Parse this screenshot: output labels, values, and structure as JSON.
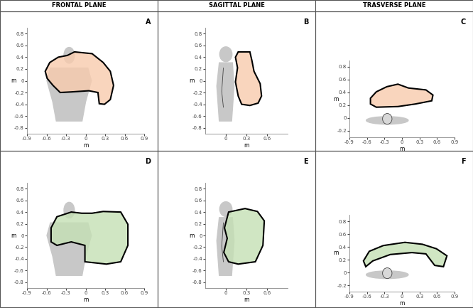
{
  "columns": [
    "FRONTAL PLANE",
    "SAGITTAL PLANE",
    "TRASVERSE PLANE"
  ],
  "chart_data": [
    {
      "type": "polygon",
      "title": "A",
      "xlabel": "m",
      "ylabel": "m",
      "color": "#f8cbad",
      "x": [
        -0.62,
        -0.55,
        -0.42,
        -0.28,
        -0.17,
        0.1,
        0.27,
        0.38,
        0.43,
        0.38,
        0.29,
        0.21,
        0.19,
        0.05,
        -0.22,
        -0.39,
        -0.5,
        -0.59
      ],
      "y": [
        0.16,
        0.31,
        0.4,
        0.43,
        0.49,
        0.46,
        0.31,
        0.16,
        -0.08,
        -0.32,
        -0.4,
        -0.39,
        -0.2,
        -0.17,
        -0.19,
        -0.2,
        -0.08,
        0.04
      ],
      "xlim": [
        -0.9,
        0.9
      ],
      "ylim": [
        -0.9,
        0.9
      ],
      "xticks": [
        -0.9,
        -0.6,
        -0.3,
        0,
        0.3,
        0.6,
        0.9
      ],
      "yticks": [
        -0.8,
        -0.6,
        -0.4,
        -0.2,
        0,
        0.2,
        0.4,
        0.6,
        0.8
      ]
    },
    {
      "type": "polygon",
      "title": "B",
      "xlabel": "m",
      "ylabel": "m",
      "color": "#f8cbad",
      "x": [
        0.18,
        0.35,
        0.38,
        0.41,
        0.5,
        0.52,
        0.47,
        0.35,
        0.23,
        0.18,
        0.14,
        0.17,
        0.14
      ],
      "y": [
        0.49,
        0.49,
        0.34,
        0.16,
        -0.05,
        -0.26,
        -0.38,
        -0.42,
        -0.4,
        -0.26,
        -0.02,
        0.22,
        0.4
      ],
      "xlim": [
        -0.3,
        0.9
      ],
      "ylim": [
        -0.9,
        0.9
      ],
      "xticks": [
        0,
        0.3,
        0.6
      ],
      "yticks": [
        -0.8,
        -0.6,
        -0.4,
        -0.2,
        0,
        0.2,
        0.4,
        0.6,
        0.8
      ]
    },
    {
      "type": "polygon",
      "title": "C",
      "xlabel": "m",
      "ylabel": "m",
      "color": "#f8cbad",
      "x": [
        -0.54,
        -0.44,
        -0.26,
        -0.07,
        0.11,
        0.41,
        0.53,
        0.51,
        0.23,
        -0.07,
        -0.44,
        -0.54
      ],
      "y": [
        0.31,
        0.41,
        0.49,
        0.53,
        0.47,
        0.44,
        0.36,
        0.27,
        0.22,
        0.18,
        0.17,
        0.22
      ],
      "xlim": [
        -0.9,
        0.9
      ],
      "ylim": [
        -0.3,
        0.9
      ],
      "xticks": [
        -0.9,
        -0.6,
        -0.3,
        0,
        0.3,
        0.6,
        0.9
      ],
      "yticks": [
        -0.2,
        0,
        0.2,
        0.4,
        0.6,
        0.8
      ]
    },
    {
      "type": "polygon",
      "title": "D",
      "xlabel": "m",
      "ylabel": "m",
      "color": "#c5e0b4",
      "x": [
        -0.53,
        -0.44,
        -0.22,
        -0.06,
        0.1,
        0.27,
        0.54,
        0.65,
        0.65,
        0.54,
        0.32,
        -0.01,
        -0.01,
        -0.22,
        -0.44,
        -0.53
      ],
      "y": [
        0.13,
        0.32,
        0.4,
        0.38,
        0.38,
        0.41,
        0.4,
        0.19,
        -0.17,
        -0.45,
        -0.49,
        -0.45,
        -0.17,
        -0.11,
        -0.17,
        -0.11
      ],
      "xlim": [
        -0.9,
        0.9
      ],
      "ylim": [
        -0.9,
        0.9
      ],
      "xticks": [
        -0.9,
        -0.6,
        -0.3,
        0,
        0.3,
        0.6,
        0.9
      ],
      "yticks": [
        -0.8,
        -0.6,
        -0.4,
        -0.2,
        0,
        0.2,
        0.4,
        0.6,
        0.8
      ]
    },
    {
      "type": "polygon",
      "title": "E",
      "xlabel": "m",
      "ylabel": "m",
      "color": "#c5e0b4",
      "x": [
        0.04,
        0.28,
        0.46,
        0.56,
        0.54,
        0.43,
        0.18,
        0.04,
        -0.03,
        0.02,
        -0.02,
        0.02
      ],
      "y": [
        0.4,
        0.46,
        0.41,
        0.25,
        -0.17,
        -0.45,
        -0.49,
        -0.45,
        -0.29,
        -0.05,
        0.13,
        0.31
      ],
      "xlim": [
        -0.3,
        0.9
      ],
      "ylim": [
        -0.9,
        0.9
      ],
      "xticks": [
        0,
        0.3,
        0.6
      ],
      "yticks": [
        -0.8,
        -0.6,
        -0.4,
        -0.2,
        0,
        0.2,
        0.4,
        0.6,
        0.8
      ]
    },
    {
      "type": "polygon",
      "title": "F",
      "xlabel": "m",
      "ylabel": "m",
      "color": "#c5e0b4",
      "x": [
        -0.66,
        -0.56,
        -0.32,
        0.05,
        0.35,
        0.59,
        0.77,
        0.71,
        0.56,
        0.41,
        0.17,
        -0.2,
        -0.5,
        -0.62
      ],
      "y": [
        0.18,
        0.33,
        0.42,
        0.47,
        0.44,
        0.37,
        0.26,
        0.09,
        0.11,
        0.29,
        0.31,
        0.28,
        0.18,
        0.09
      ],
      "xlim": [
        -0.9,
        0.9
      ],
      "ylim": [
        -0.3,
        0.9
      ],
      "xticks": [
        -0.9,
        -0.6,
        -0.3,
        0,
        0.3,
        0.6,
        0.9
      ],
      "yticks": [
        -0.2,
        0,
        0.2,
        0.4,
        0.6,
        0.8
      ]
    }
  ]
}
